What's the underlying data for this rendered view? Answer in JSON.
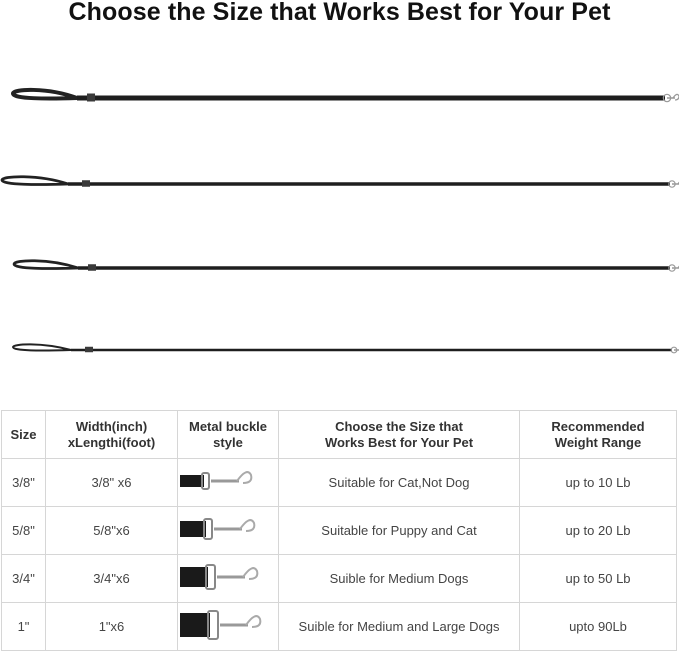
{
  "title": "Choose the Size that Works Best for Your Pet",
  "leashes": [
    {
      "size": "3/8\"",
      "strap": 5
    },
    {
      "size": "5/8\"",
      "strap": 3.5
    },
    {
      "size": "3/4\"",
      "strap": 3.5
    },
    {
      "size": "1\"",
      "strap": 2.5
    }
  ],
  "table": {
    "headers": [
      "Size",
      "Width(inch)\nxLengthi(foot)",
      "Metal buckle\nstyle",
      "Choose the Size that\nWorks Best for Your Pet",
      "Recommended\nWeight Range"
    ],
    "rows": [
      {
        "size": "3/8\"",
        "dims": "3/8\" x6",
        "buckle_icon": "small-buckle",
        "buckle_scale": 1,
        "suitability": "Suitable for Cat,Not Dog",
        "weight": "up to 10 Lb"
      },
      {
        "size": "5/8\"",
        "dims": "5/8\"x6",
        "buckle_icon": "medium-buckle",
        "buckle_scale": 2,
        "suitability": "Suitable for Puppy and Cat",
        "weight": "up to 20 Lb"
      },
      {
        "size": "3/4\"",
        "dims": "3/4\"x6",
        "buckle_icon": "large-buckle",
        "buckle_scale": 3,
        "suitability": "Suible for Medium Dogs",
        "weight": "up to 50 Lb"
      },
      {
        "size": "1\"",
        "dims": "1\"x6",
        "buckle_icon": "xl-buckle",
        "buckle_scale": 4,
        "suitability": "Suible for Medium and Large Dogs",
        "weight": "upto 90Lb"
      }
    ]
  }
}
